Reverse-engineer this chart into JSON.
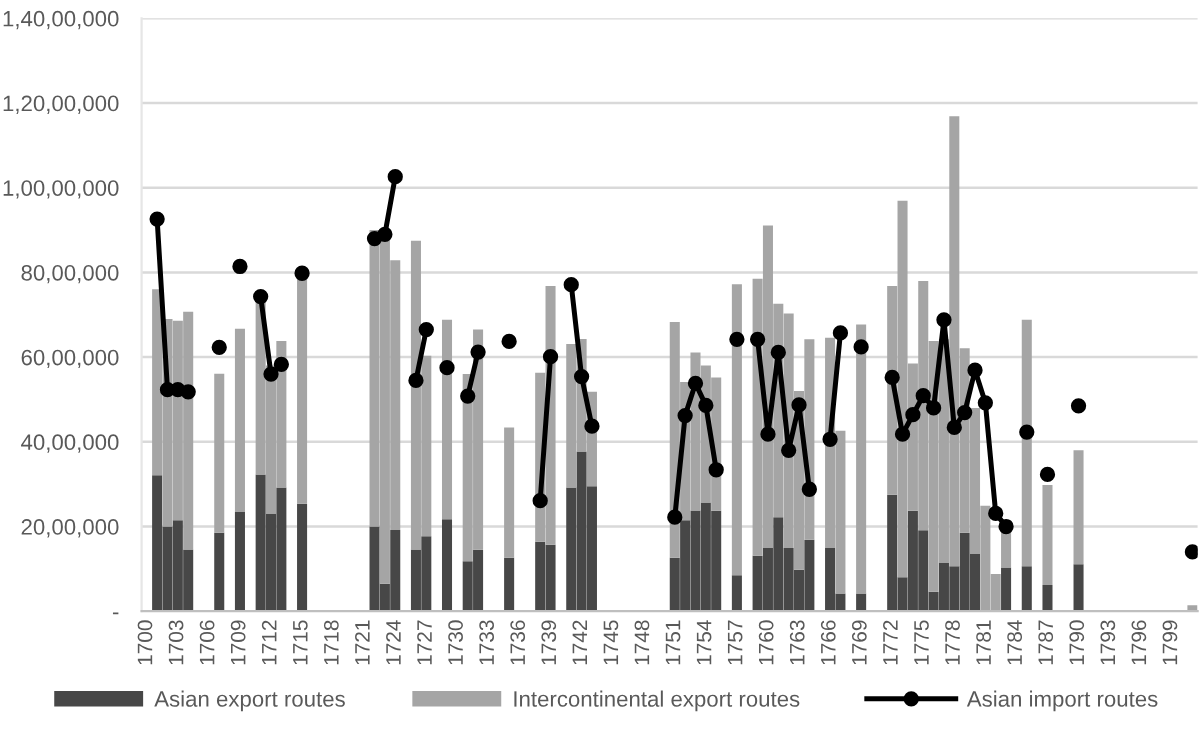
{
  "chart_data": {
    "type": "bar",
    "stacked": true,
    "grid": "y",
    "legend": "bottom",
    "marker": "circle",
    "line_style": "solid",
    "categories": [
      "1700",
      null,
      null,
      "1703",
      null,
      null,
      "1706",
      null,
      null,
      "1709",
      null,
      null,
      "1712",
      null,
      null,
      "1715",
      null,
      null,
      "1718",
      null,
      null,
      "1721",
      null,
      null,
      "1724",
      null,
      null,
      "1727",
      null,
      null,
      "1730",
      null,
      null,
      "1733",
      null,
      null,
      "1736",
      null,
      null,
      "1739",
      null,
      null,
      "1742",
      null,
      null,
      "1745",
      null,
      null,
      "1748",
      null,
      null,
      "1751",
      null,
      null,
      "1754",
      null,
      null,
      "1757",
      null,
      null,
      "1760",
      null,
      null,
      "1763",
      null,
      null,
      "1766",
      null,
      null,
      "1769",
      null,
      null,
      "1772",
      null,
      null,
      "1775",
      null,
      null,
      "1778",
      null,
      null,
      "1781",
      null,
      null,
      "1784",
      null,
      null,
      "1787",
      null,
      null,
      "1790",
      null,
      null,
      "1793",
      null,
      null,
      "1796",
      null,
      null,
      "1799",
      null,
      null
    ],
    "ylim": [
      0,
      14000000
    ],
    "yticks": [
      {
        "value": 0,
        "label": "-"
      },
      {
        "value": 2000000,
        "label": "20,00,000"
      },
      {
        "value": 4000000,
        "label": "40,00,000"
      },
      {
        "value": 6000000,
        "label": "60,00,000"
      },
      {
        "value": 8000000,
        "label": "80,00,000"
      },
      {
        "value": 10000000,
        "label": "1,00,00,000"
      },
      {
        "value": 12000000,
        "label": "1,20,00,000"
      },
      {
        "value": 14000000,
        "label": "1,40,00,000"
      }
    ],
    "series": [
      {
        "name": "Asian export routes",
        "color": "#474747",
        "values": [
          null,
          3210000,
          2000000,
          2150000,
          1460000,
          null,
          null,
          1850000,
          null,
          2340000,
          null,
          3230000,
          2310000,
          2920000,
          null,
          2540000,
          null,
          null,
          null,
          null,
          null,
          null,
          2000000,
          650000,
          1920000,
          null,
          1460000,
          1770000,
          null,
          2170000,
          null,
          1180000,
          1450000,
          null,
          null,
          1260000,
          null,
          null,
          1640000,
          1570000,
          null,
          2920000,
          3770000,
          2950000,
          null,
          null,
          null,
          null,
          null,
          null,
          null,
          1260000,
          2150000,
          2380000,
          2570000,
          2370000,
          null,
          850000,
          null,
          1310000,
          1490000,
          2220000,
          1490000,
          980000,
          1690000,
          null,
          1490000,
          420000,
          null,
          420000,
          null,
          null,
          2750000,
          800000,
          2370000,
          1910000,
          460000,
          1140000,
          1060000,
          1850000,
          1350000,
          null,
          null,
          1030000,
          null,
          1060000,
          null,
          620000,
          null,
          null,
          1110000,
          null,
          null,
          null,
          null,
          null,
          null,
          null,
          null,
          null,
          null,
          null
        ]
      },
      {
        "name": "Intercontinental export routes",
        "color": "#a5a5a5",
        "values": [
          null,
          4390000,
          4900000,
          4710000,
          5610000,
          null,
          null,
          3760000,
          null,
          4330000,
          null,
          4070000,
          3490000,
          3460000,
          null,
          5310000,
          null,
          null,
          null,
          null,
          null,
          null,
          7000000,
          8220000,
          6370000,
          null,
          7290000,
          4260000,
          null,
          4710000,
          null,
          4420000,
          5200000,
          null,
          null,
          3080000,
          null,
          null,
          3990000,
          6110000,
          null,
          3390000,
          2660000,
          2230000,
          null,
          null,
          null,
          null,
          null,
          null,
          null,
          5570000,
          3260000,
          3730000,
          3230000,
          3150000,
          null,
          6870000,
          null,
          6540000,
          7620000,
          5040000,
          5540000,
          4220000,
          4730000,
          null,
          4970000,
          3840000,
          null,
          6350000,
          null,
          null,
          4930000,
          8890000,
          3480000,
          5890000,
          5920000,
          5280000,
          10630000,
          4360000,
          3450000,
          2490000,
          880000,
          1120000,
          null,
          5820000,
          null,
          2360000,
          null,
          null,
          2690000,
          null,
          null,
          null,
          null,
          null,
          null,
          null,
          null,
          null,
          null,
          140000
        ]
      },
      {
        "name": "Asian import routes",
        "type": "line",
        "color": "#000000",
        "values": [
          null,
          9260000,
          5230000,
          5230000,
          5180000,
          null,
          null,
          6230000,
          null,
          8140000,
          null,
          7430000,
          5600000,
          5830000,
          null,
          7980000,
          null,
          null,
          null,
          null,
          null,
          null,
          8800000,
          8900000,
          10260000,
          null,
          5450000,
          6650000,
          null,
          5750000,
          null,
          5080000,
          6120000,
          null,
          null,
          6370000,
          null,
          null,
          2610000,
          6010000,
          null,
          7710000,
          5540000,
          4370000,
          null,
          null,
          null,
          null,
          null,
          null,
          null,
          2220000,
          4620000,
          5380000,
          4860000,
          3340000,
          null,
          6420000,
          null,
          6420000,
          4180000,
          6110000,
          3800000,
          4870000,
          2880000,
          null,
          4060000,
          6570000,
          null,
          6240000,
          null,
          null,
          5520000,
          4180000,
          4640000,
          5090000,
          4800000,
          6880000,
          4340000,
          4690000,
          5690000,
          4920000,
          2310000,
          2000000,
          null,
          4230000,
          null,
          3230000,
          null,
          null,
          4850000,
          null,
          null,
          null,
          null,
          null,
          null,
          null,
          null,
          null,
          null,
          1400000
        ]
      }
    ]
  }
}
